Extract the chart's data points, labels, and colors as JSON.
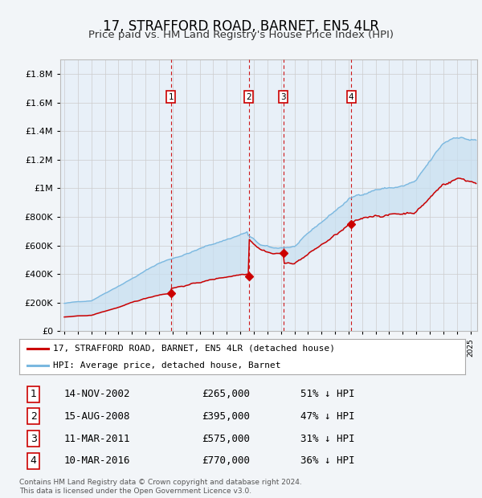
{
  "title": "17, STRAFFORD ROAD, BARNET, EN5 4LR",
  "subtitle": "Price paid vs. HM Land Registry's House Price Index (HPI)",
  "footer": "Contains HM Land Registry data © Crown copyright and database right 2024.\nThis data is licensed under the Open Government Licence v3.0.",
  "legend_line1": "17, STRAFFORD ROAD, BARNET, EN5 4LR (detached house)",
  "legend_line2": "HPI: Average price, detached house, Barnet",
  "transactions": [
    {
      "num": 1,
      "label": "14-NOV-2002",
      "price": 265000,
      "pct": "51% ↓ HPI",
      "x_year": 2002.87
    },
    {
      "num": 2,
      "label": "15-AUG-2008",
      "price": 395000,
      "pct": "47% ↓ HPI",
      "x_year": 2008.62
    },
    {
      "num": 3,
      "label": "11-MAR-2011",
      "price": 575000,
      "pct": "31% ↓ HPI",
      "x_year": 2011.19
    },
    {
      "num": 4,
      "label": "10-MAR-2016",
      "price": 770000,
      "pct": "36% ↓ HPI",
      "x_year": 2016.19
    }
  ],
  "hpi_color": "#7ab8e0",
  "price_color": "#cc0000",
  "vline_color": "#cc0000",
  "fill_color": "#c8dff0",
  "bg_color": "#e8f0f8",
  "ylim": [
    0,
    1900000
  ],
  "yticks": [
    0,
    200000,
    400000,
    600000,
    800000,
    1000000,
    1200000,
    1400000,
    1600000,
    1800000
  ],
  "xlim_start": 1994.7,
  "xlim_end": 2025.5,
  "title_fontsize": 12,
  "subtitle_fontsize": 10
}
